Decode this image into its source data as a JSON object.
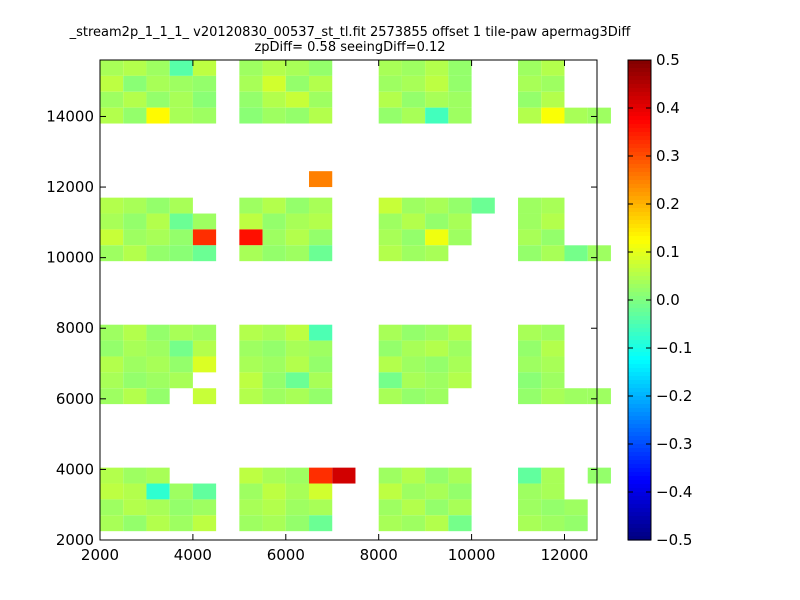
{
  "chart_data": {
    "type": "heatmap",
    "title": "_stream2p_1_1_1_ v20120830_00537_st_tl.fit 2573855 offset 1 tile-paw apermag3Diff",
    "subtitle": "zpDiff= 0.58 seeingDiff=0.12",
    "xlabel": "",
    "ylabel": "",
    "xlim": [
      2000,
      12700
    ],
    "ylim": [
      2000,
      15600
    ],
    "xticks": [
      "2000",
      "4000",
      "6000",
      "8000",
      "10000",
      "12000"
    ],
    "yticks": [
      "2000",
      "4000",
      "6000",
      "8000",
      "10000",
      "12000",
      "14000"
    ],
    "colorbar": {
      "colormap": "jet",
      "vmin": -0.5,
      "vmax": 0.5,
      "ticks": [
        "0.5",
        "0.4",
        "0.3",
        "0.2",
        "0.1",
        "0.0",
        "−0.1",
        "−0.2",
        "−0.3",
        "−0.4",
        "−0.5"
      ]
    },
    "grid": false,
    "cell_size": [
      500,
      450
    ],
    "cells": [
      [
        2000,
        15150,
        0.04
      ],
      [
        2500,
        15150,
        0.05
      ],
      [
        3000,
        15150,
        0.03
      ],
      [
        3500,
        15150,
        -0.04
      ],
      [
        4000,
        15150,
        0.06
      ],
      [
        5000,
        15150,
        0.03
      ],
      [
        5500,
        15150,
        0.05
      ],
      [
        6000,
        15150,
        0.04
      ],
      [
        6500,
        15150,
        0.02
      ],
      [
        8000,
        15150,
        0.04
      ],
      [
        8500,
        15150,
        0.03
      ],
      [
        9000,
        15150,
        0.05
      ],
      [
        9500,
        15150,
        0.02
      ],
      [
        11000,
        15150,
        0.03
      ],
      [
        11500,
        15150,
        0.05
      ],
      [
        2000,
        14700,
        0.06
      ],
      [
        2500,
        14700,
        0.01
      ],
      [
        3000,
        14700,
        0.04
      ],
      [
        3500,
        14700,
        0.03
      ],
      [
        4000,
        14700,
        0.02
      ],
      [
        5000,
        14700,
        0.04
      ],
      [
        5500,
        14700,
        0.08
      ],
      [
        6000,
        14700,
        0.02
      ],
      [
        6500,
        14700,
        0.05
      ],
      [
        8000,
        14700,
        0.03
      ],
      [
        8500,
        14700,
        0.04
      ],
      [
        9000,
        14700,
        0.06
      ],
      [
        9500,
        14700,
        0.02
      ],
      [
        11000,
        14700,
        0.04
      ],
      [
        11500,
        14700,
        0.03
      ],
      [
        2000,
        14250,
        0.03
      ],
      [
        2500,
        14250,
        0.05
      ],
      [
        3000,
        14250,
        0.02
      ],
      [
        3500,
        14250,
        0.04
      ],
      [
        4000,
        14250,
        0.01
      ],
      [
        5000,
        14250,
        0.02
      ],
      [
        5500,
        14250,
        0.05
      ],
      [
        6000,
        14250,
        0.07
      ],
      [
        6500,
        14250,
        0.03
      ],
      [
        8000,
        14250,
        0.05
      ],
      [
        8500,
        14250,
        0.02
      ],
      [
        9000,
        14250,
        0.04
      ],
      [
        9500,
        14250,
        0.03
      ],
      [
        11000,
        14250,
        0.02
      ],
      [
        11500,
        14250,
        0.05
      ],
      [
        2000,
        13800,
        0.05
      ],
      [
        2500,
        13800,
        0.02
      ],
      [
        3000,
        13800,
        0.13
      ],
      [
        3500,
        13800,
        0.04
      ],
      [
        4000,
        13800,
        0.03
      ],
      [
        5000,
        13800,
        0.01
      ],
      [
        5500,
        13800,
        0.03
      ],
      [
        6000,
        13800,
        0.02
      ],
      [
        6500,
        13800,
        0.05
      ],
      [
        8000,
        13800,
        0.02
      ],
      [
        8500,
        13800,
        0.04
      ],
      [
        9000,
        13800,
        -0.06
      ],
      [
        9500,
        13800,
        0.03
      ],
      [
        11000,
        13800,
        0.05
      ],
      [
        11500,
        13800,
        0.12
      ],
      [
        12000,
        13800,
        0.04
      ],
      [
        12500,
        13800,
        0.03
      ],
      [
        6500,
        12000,
        0.25
      ],
      [
        2000,
        11250,
        0.05
      ],
      [
        2500,
        11250,
        0.04
      ],
      [
        3000,
        11250,
        0.02
      ],
      [
        3500,
        11250,
        0.04
      ],
      [
        5000,
        11250,
        0.03
      ],
      [
        5500,
        11250,
        0.05
      ],
      [
        6000,
        11250,
        0.02
      ],
      [
        6500,
        11250,
        0.04
      ],
      [
        8000,
        11250,
        0.07
      ],
      [
        8500,
        11250,
        0.03
      ],
      [
        9000,
        11250,
        0.04
      ],
      [
        9500,
        11250,
        0.02
      ],
      [
        10000,
        11250,
        -0.02
      ],
      [
        11000,
        11250,
        0.03
      ],
      [
        11500,
        11250,
        0.04
      ],
      [
        2000,
        10800,
        0.04
      ],
      [
        2500,
        10800,
        0.02
      ],
      [
        3000,
        10800,
        0.05
      ],
      [
        3500,
        10800,
        -0.02
      ],
      [
        4000,
        10800,
        0.03
      ],
      [
        5000,
        10800,
        0.06
      ],
      [
        5500,
        10800,
        0.02
      ],
      [
        6000,
        10800,
        0.04
      ],
      [
        6500,
        10800,
        0.05
      ],
      [
        8000,
        10800,
        0.03
      ],
      [
        8500,
        10800,
        0.05
      ],
      [
        9000,
        10800,
        0.02
      ],
      [
        9500,
        10800,
        0.04
      ],
      [
        11000,
        10800,
        0.03
      ],
      [
        11500,
        10800,
        0.05
      ],
      [
        2000,
        10350,
        0.07
      ],
      [
        2500,
        10350,
        0.03
      ],
      [
        3000,
        10350,
        0.04
      ],
      [
        3500,
        10350,
        0.02
      ],
      [
        4000,
        10350,
        0.33
      ],
      [
        5000,
        10350,
        0.36
      ],
      [
        5500,
        10350,
        0.03
      ],
      [
        6000,
        10350,
        0.05
      ],
      [
        6500,
        10350,
        0.02
      ],
      [
        8000,
        10350,
        0.04
      ],
      [
        8500,
        10350,
        0.02
      ],
      [
        9000,
        10350,
        0.11
      ],
      [
        9500,
        10350,
        0.03
      ],
      [
        11000,
        10350,
        0.04
      ],
      [
        11500,
        10350,
        0.02
      ],
      [
        2000,
        9900,
        0.03
      ],
      [
        2500,
        9900,
        0.05
      ],
      [
        3000,
        9900,
        0.02
      ],
      [
        3500,
        9900,
        0.01
      ],
      [
        4000,
        9900,
        -0.02
      ],
      [
        5000,
        9900,
        0.04
      ],
      [
        5500,
        9900,
        0.02
      ],
      [
        6000,
        9900,
        0.03
      ],
      [
        6500,
        9900,
        -0.02
      ],
      [
        8000,
        9900,
        0.05
      ],
      [
        8500,
        9900,
        0.03
      ],
      [
        9000,
        9900,
        0.04
      ],
      [
        11000,
        9900,
        0.02
      ],
      [
        11500,
        9900,
        0.04
      ],
      [
        12000,
        9900,
        -0.01
      ],
      [
        12500,
        9900,
        0.03
      ],
      [
        2000,
        7650,
        0.03
      ],
      [
        2500,
        7650,
        0.05
      ],
      [
        3000,
        7650,
        0.02
      ],
      [
        3500,
        7650,
        0.04
      ],
      [
        4000,
        7650,
        0.03
      ],
      [
        5000,
        7650,
        0.05
      ],
      [
        5500,
        7650,
        0.04
      ],
      [
        6000,
        7650,
        0.06
      ],
      [
        6500,
        7650,
        -0.05
      ],
      [
        8000,
        7650,
        0.04
      ],
      [
        8500,
        7650,
        0.02
      ],
      [
        9000,
        7650,
        0.03
      ],
      [
        9500,
        7650,
        0.05
      ],
      [
        11000,
        7650,
        0.04
      ],
      [
        11500,
        7650,
        0.03
      ],
      [
        2000,
        7200,
        0.02
      ],
      [
        2500,
        7200,
        0.04
      ],
      [
        3000,
        7200,
        0.03
      ],
      [
        3500,
        7200,
        -0.01
      ],
      [
        4000,
        7200,
        0.05
      ],
      [
        5000,
        7200,
        0.03
      ],
      [
        5500,
        7200,
        0.02
      ],
      [
        6000,
        7200,
        0.04
      ],
      [
        6500,
        7200,
        0.03
      ],
      [
        8000,
        7200,
        0.02
      ],
      [
        8500,
        7200,
        0.04
      ],
      [
        9000,
        7200,
        0.05
      ],
      [
        9500,
        7200,
        0.03
      ],
      [
        11000,
        7200,
        0.02
      ],
      [
        11500,
        7200,
        0.05
      ],
      [
        2000,
        6750,
        0.05
      ],
      [
        2500,
        6750,
        0.03
      ],
      [
        3000,
        6750,
        0.04
      ],
      [
        3500,
        6750,
        0.02
      ],
      [
        4000,
        6750,
        0.09
      ],
      [
        5000,
        6750,
        0.04
      ],
      [
        5500,
        6750,
        0.03
      ],
      [
        6000,
        6750,
        0.05
      ],
      [
        6500,
        6750,
        0.02
      ],
      [
        8000,
        6750,
        0.05
      ],
      [
        8500,
        6750,
        0.03
      ],
      [
        9000,
        6750,
        0.02
      ],
      [
        9500,
        6750,
        0.04
      ],
      [
        11000,
        6750,
        0.03
      ],
      [
        11500,
        6750,
        0.04
      ],
      [
        2000,
        6300,
        0.04
      ],
      [
        2500,
        6300,
        0.02
      ],
      [
        3000,
        6300,
        0.03
      ],
      [
        3500,
        6300,
        0.04
      ],
      [
        5000,
        6300,
        0.06
      ],
      [
        5500,
        6300,
        0.02
      ],
      [
        6000,
        6300,
        -0.02
      ],
      [
        6500,
        6300,
        0.04
      ],
      [
        8000,
        6300,
        -0.01
      ],
      [
        8500,
        6300,
        0.04
      ],
      [
        9000,
        6300,
        0.03
      ],
      [
        9500,
        6300,
        0.05
      ],
      [
        11000,
        6300,
        0.01
      ],
      [
        11500,
        6300,
        0.03
      ],
      [
        2000,
        5850,
        0.03
      ],
      [
        2500,
        5850,
        0.05
      ],
      [
        3000,
        5850,
        0.02
      ],
      [
        4000,
        5850,
        0.07
      ],
      [
        5000,
        5850,
        0.05
      ],
      [
        5500,
        5850,
        0.03
      ],
      [
        6000,
        5850,
        0.04
      ],
      [
        6500,
        5850,
        0.02
      ],
      [
        8000,
        5850,
        0.04
      ],
      [
        8500,
        5850,
        0.02
      ],
      [
        9000,
        5850,
        0.03
      ],
      [
        11000,
        5850,
        0.02
      ],
      [
        11500,
        5850,
        0.04
      ],
      [
        12000,
        5850,
        0.03
      ],
      [
        12500,
        5850,
        0.03
      ],
      [
        2000,
        3600,
        0.05
      ],
      [
        2500,
        3600,
        0.03
      ],
      [
        3000,
        3600,
        0.04
      ],
      [
        5000,
        3600,
        0.06
      ],
      [
        5500,
        3600,
        0.04
      ],
      [
        6000,
        3600,
        0.03
      ],
      [
        6500,
        3600,
        0.33
      ],
      [
        7000,
        3600,
        0.42
      ],
      [
        8000,
        3600,
        0.03
      ],
      [
        8500,
        3600,
        0.05
      ],
      [
        9000,
        3600,
        0.02
      ],
      [
        9500,
        3600,
        0.04
      ],
      [
        11000,
        3600,
        -0.03
      ],
      [
        11500,
        3600,
        0.04
      ],
      [
        12500,
        3600,
        0.02
      ],
      [
        2000,
        3150,
        0.06
      ],
      [
        2500,
        3150,
        0.05
      ],
      [
        3000,
        3150,
        -0.08
      ],
      [
        3500,
        3150,
        0.03
      ],
      [
        4000,
        3150,
        -0.03
      ],
      [
        5000,
        3150,
        0.03
      ],
      [
        5500,
        3150,
        0.06
      ],
      [
        6000,
        3150,
        0.04
      ],
      [
        6500,
        3150,
        0.08
      ],
      [
        8000,
        3150,
        0.06
      ],
      [
        8500,
        3150,
        0.03
      ],
      [
        9000,
        3150,
        0.04
      ],
      [
        9500,
        3150,
        0.02
      ],
      [
        11000,
        3150,
        0.03
      ],
      [
        11500,
        3150,
        0.04
      ],
      [
        2000,
        2700,
        0.03
      ],
      [
        2500,
        2700,
        0.05
      ],
      [
        3000,
        2700,
        0.04
      ],
      [
        3500,
        2700,
        0.02
      ],
      [
        4000,
        2700,
        0.03
      ],
      [
        5000,
        2700,
        0.04
      ],
      [
        5500,
        2700,
        0.05
      ],
      [
        6000,
        2700,
        0.03
      ],
      [
        6500,
        2700,
        0.04
      ],
      [
        8000,
        2700,
        0.03
      ],
      [
        8500,
        2700,
        0.05
      ],
      [
        9000,
        2700,
        0.02
      ],
      [
        9500,
        2700,
        0.04
      ],
      [
        11000,
        2700,
        0.03
      ],
      [
        11500,
        2700,
        0.02
      ],
      [
        12000,
        2700,
        0.03
      ],
      [
        2000,
        2250,
        0.04
      ],
      [
        2500,
        2250,
        0.02
      ],
      [
        3000,
        2250,
        0.05
      ],
      [
        3500,
        2250,
        0.03
      ],
      [
        4000,
        2250,
        0.06
      ],
      [
        5000,
        2250,
        0.03
      ],
      [
        5500,
        2250,
        0.04
      ],
      [
        6000,
        2250,
        0.02
      ],
      [
        6500,
        2250,
        -0.02
      ],
      [
        8000,
        2250,
        0.04
      ],
      [
        8500,
        2250,
        0.03
      ],
      [
        9000,
        2250,
        0.05
      ],
      [
        9500,
        2250,
        -0.01
      ],
      [
        11000,
        2250,
        0.04
      ],
      [
        11500,
        2250,
        0.03
      ],
      [
        12000,
        2250,
        0.02
      ]
    ]
  }
}
